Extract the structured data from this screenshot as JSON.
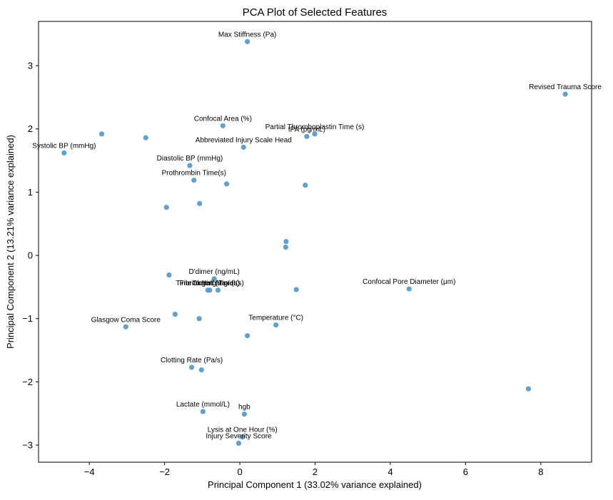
{
  "chart_data": {
    "type": "scatter",
    "title": "PCA Plot of Selected Features",
    "xlabel": "Principal Component 1 (33.02% variance explained)",
    "ylabel": "Principal Component 2 (13.21% variance explained)",
    "xlim": [
      -5.35,
      9.35
    ],
    "ylim": [
      -3.27,
      3.7
    ],
    "xticks": [
      -4,
      -2,
      0,
      2,
      4,
      6,
      8
    ],
    "yticks": [
      -3,
      -2,
      -1,
      0,
      1,
      2,
      3
    ],
    "xtick_labels": [
      "−4",
      "−2",
      "0",
      "2",
      "4",
      "6",
      "8"
    ],
    "ytick_labels": [
      "−3",
      "−2",
      "−1",
      "0",
      "1",
      "2",
      "3"
    ],
    "grid": false,
    "point_color": "#5b9bc9",
    "points": [
      {
        "x": 0.2,
        "y": 3.38,
        "label": "Max Stiffness (Pa)"
      },
      {
        "x": 8.65,
        "y": 2.55,
        "label": "Revised Trauma Score"
      },
      {
        "x": -0.45,
        "y": 2.05,
        "label": "Confocal Area (%)"
      },
      {
        "x": 1.99,
        "y": 1.92,
        "label": "Partial Thromboplastin Time (s)"
      },
      {
        "x": 1.78,
        "y": 1.88,
        "label": "tPA (pg/mL)"
      },
      {
        "x": 0.1,
        "y": 1.71,
        "label": "Abbreviated Injury Scale Head"
      },
      {
        "x": -4.67,
        "y": 1.62,
        "label": "Systolic BP (mmHg)"
      },
      {
        "x": -1.33,
        "y": 1.42,
        "label": "Diastolic BP (mmHg)"
      },
      {
        "x": -1.22,
        "y": 1.19,
        "label": "Prothrombin Time(s)"
      },
      {
        "x": -3.67,
        "y": 1.92,
        "label": ""
      },
      {
        "x": -2.5,
        "y": 1.86,
        "label": ""
      },
      {
        "x": -0.35,
        "y": 1.13,
        "label": ""
      },
      {
        "x": 1.74,
        "y": 1.11,
        "label": ""
      },
      {
        "x": -1.07,
        "y": 0.82,
        "label": ""
      },
      {
        "x": -1.95,
        "y": 0.76,
        "label": ""
      },
      {
        "x": 1.23,
        "y": 0.22,
        "label": ""
      },
      {
        "x": 1.22,
        "y": 0.13,
        "label": ""
      },
      {
        "x": -1.88,
        "y": -0.31,
        "label": ""
      },
      {
        "x": -0.68,
        "y": -0.37,
        "label": "D'dimer (ng/mL)"
      },
      {
        "x": -0.8,
        "y": -0.55,
        "label": "Fibrinogen (mg/dL)"
      },
      {
        "x": -0.85,
        "y": -0.55,
        "label": "Time to Half Max (s)"
      },
      {
        "x": -0.58,
        "y": -0.55,
        "label": "Clotting Time (s)"
      },
      {
        "x": 1.5,
        "y": -0.54,
        "label": ""
      },
      {
        "x": 4.5,
        "y": -0.53,
        "label": "Confocal Pore Diameter (μm)"
      },
      {
        "x": -1.72,
        "y": -0.93,
        "label": ""
      },
      {
        "x": -1.08,
        "y": -1.0,
        "label": ""
      },
      {
        "x": 0.96,
        "y": -1.1,
        "label": "Temperature (°C)"
      },
      {
        "x": -3.03,
        "y": -1.13,
        "label": "Glasgow Coma Score"
      },
      {
        "x": 0.2,
        "y": -1.27,
        "label": ""
      },
      {
        "x": -1.28,
        "y": -1.77,
        "label": "Clotting Rate (Pa/s)"
      },
      {
        "x": -1.02,
        "y": -1.81,
        "label": ""
      },
      {
        "x": 7.67,
        "y": -2.11,
        "label": ""
      },
      {
        "x": -0.98,
        "y": -2.47,
        "label": "Lactate (mmol/L)"
      },
      {
        "x": 0.12,
        "y": -2.51,
        "label": "hgb"
      },
      {
        "x": 0.07,
        "y": -2.87,
        "label": "Lysis at One Hour (%)"
      },
      {
        "x": -0.03,
        "y": -2.97,
        "label": "Injury Severity Score"
      }
    ]
  }
}
